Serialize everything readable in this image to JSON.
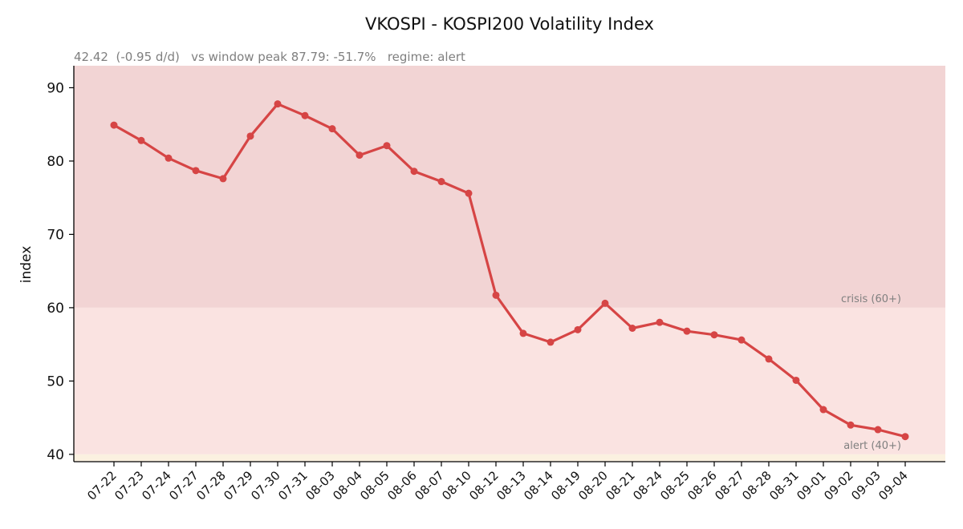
{
  "chart_data": {
    "type": "line",
    "title": "VKOSPI - KOSPI200 Volatility Index",
    "subtitle": "42.42  (-0.95 d/d)   vs window peak 87.79: -51.7%   regime: alert",
    "xlabel": "",
    "ylabel": "index",
    "ylim": [
      39,
      93
    ],
    "yticks": [
      40,
      50,
      60,
      70,
      80,
      90
    ],
    "grid": false,
    "categories": [
      "07-22",
      "07-23",
      "07-24",
      "07-27",
      "07-28",
      "07-29",
      "07-30",
      "07-31",
      "08-03",
      "08-04",
      "08-05",
      "08-06",
      "08-07",
      "08-10",
      "08-12",
      "08-13",
      "08-14",
      "08-19",
      "08-20",
      "08-21",
      "08-24",
      "08-25",
      "08-26",
      "08-27",
      "08-28",
      "08-31",
      "09-01",
      "09-02",
      "09-03",
      "09-04"
    ],
    "series": [
      {
        "values": [
          84.9,
          82.8,
          80.4,
          78.7,
          77.6,
          83.4,
          87.79,
          86.2,
          84.4,
          80.8,
          82.1,
          78.6,
          77.2,
          75.6,
          61.7,
          56.5,
          55.3,
          57.0,
          60.6,
          57.2,
          58.0,
          56.8,
          56.3,
          55.6,
          53.0,
          50.1,
          46.1,
          44.0,
          43.37,
          42.42
        ],
        "color": "#d64545"
      }
    ],
    "bands": [
      {
        "label": "crisis (60+)",
        "from": 60,
        "to": 93,
        "color": "#f2d4d4"
      },
      {
        "label": "alert (40+)",
        "from": 40,
        "to": 60,
        "color": "#fae3e1"
      },
      {
        "label": "",
        "from": 39,
        "to": 40,
        "color": "#fbf1e0"
      }
    ]
  }
}
